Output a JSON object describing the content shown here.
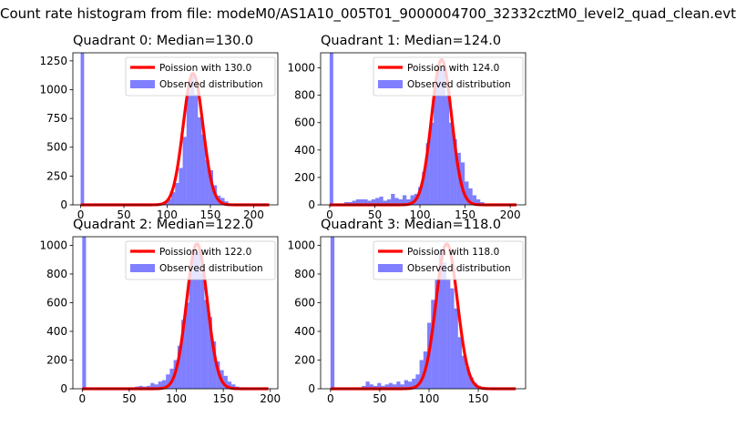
{
  "figure": {
    "suptitle": "Count rate histogram from file: modeM0/AS1A10_005T01_9000004700_32332cztM0_level2_quad_clean.evt"
  },
  "colors": {
    "hist": "#0000ff",
    "fit": "#ff0000"
  },
  "chart_data": [
    {
      "type": "bar",
      "title": "Quadrant 0: Median=130.0",
      "median": 130.0,
      "xlim": [
        -9,
        228
      ],
      "ylim": [
        0,
        1320
      ],
      "xticks": [
        0,
        50,
        100,
        150,
        200
      ],
      "yticks": [
        0,
        250,
        500,
        750,
        1000,
        1250
      ],
      "legend": {
        "placement": "upper right",
        "fit_label": "Poission with 130.0",
        "hist_label": "Observed distribution"
      },
      "bins": [
        {
          "x": 0,
          "w": 4,
          "y": 1320
        },
        {
          "x": 96,
          "w": 4.4,
          "y": 30
        },
        {
          "x": 100.4,
          "w": 4.4,
          "y": 50
        },
        {
          "x": 104.8,
          "w": 4.4,
          "y": 110
        },
        {
          "x": 109.2,
          "w": 4.4,
          "y": 190
        },
        {
          "x": 113.6,
          "w": 4.4,
          "y": 320
        },
        {
          "x": 118,
          "w": 4.4,
          "y": 590
        },
        {
          "x": 122.4,
          "w": 4.4,
          "y": 980
        },
        {
          "x": 126.8,
          "w": 4.4,
          "y": 1150
        },
        {
          "x": 131.2,
          "w": 4.4,
          "y": 960
        },
        {
          "x": 135.6,
          "w": 4.4,
          "y": 760
        },
        {
          "x": 140,
          "w": 4.4,
          "y": 610
        },
        {
          "x": 144.4,
          "w": 4.4,
          "y": 390
        },
        {
          "x": 148.8,
          "w": 4.4,
          "y": 300
        },
        {
          "x": 153.2,
          "w": 4.4,
          "y": 170
        },
        {
          "x": 157.6,
          "w": 4.4,
          "y": 80
        },
        {
          "x": 162,
          "w": 4.4,
          "y": 60
        },
        {
          "x": 166.4,
          "w": 4.4,
          "y": 30
        },
        {
          "x": 170.8,
          "w": 4.4,
          "y": 10
        }
      ],
      "fit": {
        "peak": 1140,
        "sigma": 11.4,
        "x_range": [
          0,
          218
        ]
      }
    },
    {
      "type": "bar",
      "title": "Quadrant 1: Median=124.0",
      "median": 124.0,
      "xlim": [
        -10,
        217
      ],
      "ylim": [
        0,
        1110
      ],
      "xticks": [
        0,
        50,
        100,
        150,
        200
      ],
      "yticks": [
        0,
        200,
        400,
        600,
        800,
        1000
      ],
      "legend": {
        "placement": "upper right",
        "fit_label": "Poission with 124.0",
        "hist_label": "Observed distribution"
      },
      "bins": [
        {
          "x": 0,
          "w": 4,
          "y": 1110
        },
        {
          "x": 12,
          "w": 4.3,
          "y": 10
        },
        {
          "x": 16.3,
          "w": 4.3,
          "y": 20
        },
        {
          "x": 20.6,
          "w": 4.3,
          "y": 20
        },
        {
          "x": 24.9,
          "w": 4.3,
          "y": 30
        },
        {
          "x": 29.2,
          "w": 4.3,
          "y": 40
        },
        {
          "x": 33.5,
          "w": 4.3,
          "y": 40
        },
        {
          "x": 37.8,
          "w": 4.3,
          "y": 40
        },
        {
          "x": 42.1,
          "w": 4.3,
          "y": 30
        },
        {
          "x": 46.4,
          "w": 4.3,
          "y": 40
        },
        {
          "x": 50.7,
          "w": 4.3,
          "y": 50
        },
        {
          "x": 55,
          "w": 4.3,
          "y": 60
        },
        {
          "x": 59.3,
          "w": 4.3,
          "y": 30
        },
        {
          "x": 63.6,
          "w": 4.3,
          "y": 40
        },
        {
          "x": 67.9,
          "w": 4.3,
          "y": 80
        },
        {
          "x": 72.2,
          "w": 4.3,
          "y": 50
        },
        {
          "x": 76.5,
          "w": 4.3,
          "y": 40
        },
        {
          "x": 80.8,
          "w": 4.3,
          "y": 70
        },
        {
          "x": 85.1,
          "w": 4.3,
          "y": 40
        },
        {
          "x": 89.4,
          "w": 4.3,
          "y": 70
        },
        {
          "x": 93.7,
          "w": 4.3,
          "y": 80
        },
        {
          "x": 98,
          "w": 4.3,
          "y": 130
        },
        {
          "x": 102.3,
          "w": 4.3,
          "y": 240
        },
        {
          "x": 106.6,
          "w": 4.3,
          "y": 450
        },
        {
          "x": 110.9,
          "w": 4.3,
          "y": 600
        },
        {
          "x": 115.2,
          "w": 4.3,
          "y": 900
        },
        {
          "x": 119.5,
          "w": 4.3,
          "y": 990
        },
        {
          "x": 123.8,
          "w": 4.3,
          "y": 1000
        },
        {
          "x": 128.1,
          "w": 4.3,
          "y": 800
        },
        {
          "x": 132.4,
          "w": 4.3,
          "y": 600
        },
        {
          "x": 136.7,
          "w": 4.3,
          "y": 480
        },
        {
          "x": 141,
          "w": 4.3,
          "y": 380
        },
        {
          "x": 145.3,
          "w": 4.3,
          "y": 310
        },
        {
          "x": 149.6,
          "w": 4.3,
          "y": 170
        },
        {
          "x": 153.9,
          "w": 4.3,
          "y": 120
        },
        {
          "x": 158.2,
          "w": 4.3,
          "y": 70
        },
        {
          "x": 162.5,
          "w": 4.3,
          "y": 40
        },
        {
          "x": 166.8,
          "w": 4.3,
          "y": 20
        },
        {
          "x": 171.1,
          "w": 4.3,
          "y": 10
        }
      ],
      "fit": {
        "peak": 1060,
        "sigma": 11.1,
        "x_range": [
          0,
          207
        ]
      }
    },
    {
      "type": "bar",
      "title": "Quadrant 2: Median=122.0",
      "median": 122.0,
      "xlim": [
        -10,
        208
      ],
      "ylim": [
        0,
        1060
      ],
      "xticks": [
        0,
        50,
        100,
        150,
        200
      ],
      "yticks": [
        0,
        200,
        400,
        600,
        800,
        1000
      ],
      "legend": {
        "placement": "upper right",
        "fit_label": "Poission with 122.0",
        "hist_label": "Observed distribution"
      },
      "bins": [
        {
          "x": 0,
          "w": 4,
          "y": 1060
        },
        {
          "x": 48,
          "w": 4.1,
          "y": 10
        },
        {
          "x": 52.1,
          "w": 4.1,
          "y": 10
        },
        {
          "x": 56.2,
          "w": 4.1,
          "y": 15
        },
        {
          "x": 60.3,
          "w": 4.1,
          "y": 20
        },
        {
          "x": 64.4,
          "w": 4.1,
          "y": 15
        },
        {
          "x": 68.5,
          "w": 4.1,
          "y": 20
        },
        {
          "x": 72.6,
          "w": 4.1,
          "y": 40
        },
        {
          "x": 76.7,
          "w": 4.1,
          "y": 30
        },
        {
          "x": 80.8,
          "w": 4.1,
          "y": 50
        },
        {
          "x": 84.9,
          "w": 4.1,
          "y": 60
        },
        {
          "x": 89,
          "w": 4.1,
          "y": 100
        },
        {
          "x": 93.1,
          "w": 4.1,
          "y": 140
        },
        {
          "x": 97.2,
          "w": 4.1,
          "y": 200
        },
        {
          "x": 101.3,
          "w": 4.1,
          "y": 300
        },
        {
          "x": 105.4,
          "w": 4.1,
          "y": 480
        },
        {
          "x": 109.5,
          "w": 4.1,
          "y": 600
        },
        {
          "x": 113.6,
          "w": 4.1,
          "y": 820
        },
        {
          "x": 117.7,
          "w": 4.1,
          "y": 950
        },
        {
          "x": 121.8,
          "w": 4.1,
          "y": 960
        },
        {
          "x": 125.9,
          "w": 4.1,
          "y": 810
        },
        {
          "x": 130,
          "w": 4.1,
          "y": 620
        },
        {
          "x": 134.1,
          "w": 4.1,
          "y": 500
        },
        {
          "x": 138.2,
          "w": 4.1,
          "y": 330
        },
        {
          "x": 142.3,
          "w": 4.1,
          "y": 190
        },
        {
          "x": 146.4,
          "w": 4.1,
          "y": 130
        },
        {
          "x": 150.5,
          "w": 4.1,
          "y": 90
        },
        {
          "x": 154.6,
          "w": 4.1,
          "y": 50
        },
        {
          "x": 158.7,
          "w": 4.1,
          "y": 30
        },
        {
          "x": 162.8,
          "w": 4.1,
          "y": 15
        },
        {
          "x": 166.9,
          "w": 4.1,
          "y": 10
        }
      ],
      "fit": {
        "peak": 1010,
        "sigma": 11.0,
        "x_range": [
          0,
          198
        ]
      }
    },
    {
      "type": "bar",
      "title": "Quadrant 3: Median=118.0",
      "median": 118.0,
      "xlim": [
        -10,
        198
      ],
      "ylim": [
        0,
        1060
      ],
      "xticks": [
        0,
        50,
        100,
        150
      ],
      "yticks": [
        0,
        200,
        400,
        600,
        800,
        1000
      ],
      "legend": {
        "placement": "upper right",
        "fit_label": "Poission with 118.0",
        "hist_label": "Observed distribution"
      },
      "bins": [
        {
          "x": 0,
          "w": 4,
          "y": 1060
        },
        {
          "x": 28,
          "w": 3.9,
          "y": 10
        },
        {
          "x": 31.9,
          "w": 3.9,
          "y": 20
        },
        {
          "x": 35.8,
          "w": 3.9,
          "y": 50
        },
        {
          "x": 39.7,
          "w": 3.9,
          "y": 30
        },
        {
          "x": 43.6,
          "w": 3.9,
          "y": 20
        },
        {
          "x": 47.5,
          "w": 3.9,
          "y": 40
        },
        {
          "x": 51.4,
          "w": 3.9,
          "y": 20
        },
        {
          "x": 55.3,
          "w": 3.9,
          "y": 30
        },
        {
          "x": 59.2,
          "w": 3.9,
          "y": 40
        },
        {
          "x": 63.1,
          "w": 3.9,
          "y": 30
        },
        {
          "x": 67,
          "w": 3.9,
          "y": 50
        },
        {
          "x": 70.9,
          "w": 3.9,
          "y": 30
        },
        {
          "x": 74.8,
          "w": 3.9,
          "y": 60
        },
        {
          "x": 78.7,
          "w": 3.9,
          "y": 50
        },
        {
          "x": 82.6,
          "w": 3.9,
          "y": 70
        },
        {
          "x": 86.5,
          "w": 3.9,
          "y": 100
        },
        {
          "x": 90.4,
          "w": 3.9,
          "y": 200
        },
        {
          "x": 94.3,
          "w": 3.9,
          "y": 260
        },
        {
          "x": 98.2,
          "w": 3.9,
          "y": 460
        },
        {
          "x": 102.1,
          "w": 3.9,
          "y": 620
        },
        {
          "x": 106,
          "w": 3.9,
          "y": 760
        },
        {
          "x": 109.9,
          "w": 3.9,
          "y": 960
        },
        {
          "x": 113.8,
          "w": 3.9,
          "y": 880
        },
        {
          "x": 117.7,
          "w": 3.9,
          "y": 760
        },
        {
          "x": 121.6,
          "w": 3.9,
          "y": 700
        },
        {
          "x": 125.5,
          "w": 3.9,
          "y": 560
        },
        {
          "x": 129.4,
          "w": 3.9,
          "y": 360
        },
        {
          "x": 133.3,
          "w": 3.9,
          "y": 230
        },
        {
          "x": 137.2,
          "w": 3.9,
          "y": 150
        },
        {
          "x": 141.1,
          "w": 3.9,
          "y": 80
        },
        {
          "x": 145,
          "w": 3.9,
          "y": 40
        },
        {
          "x": 148.9,
          "w": 3.9,
          "y": 20
        },
        {
          "x": 152.8,
          "w": 3.9,
          "y": 10
        }
      ],
      "fit": {
        "peak": 1010,
        "sigma": 10.8,
        "x_range": [
          0,
          188
        ]
      }
    }
  ]
}
